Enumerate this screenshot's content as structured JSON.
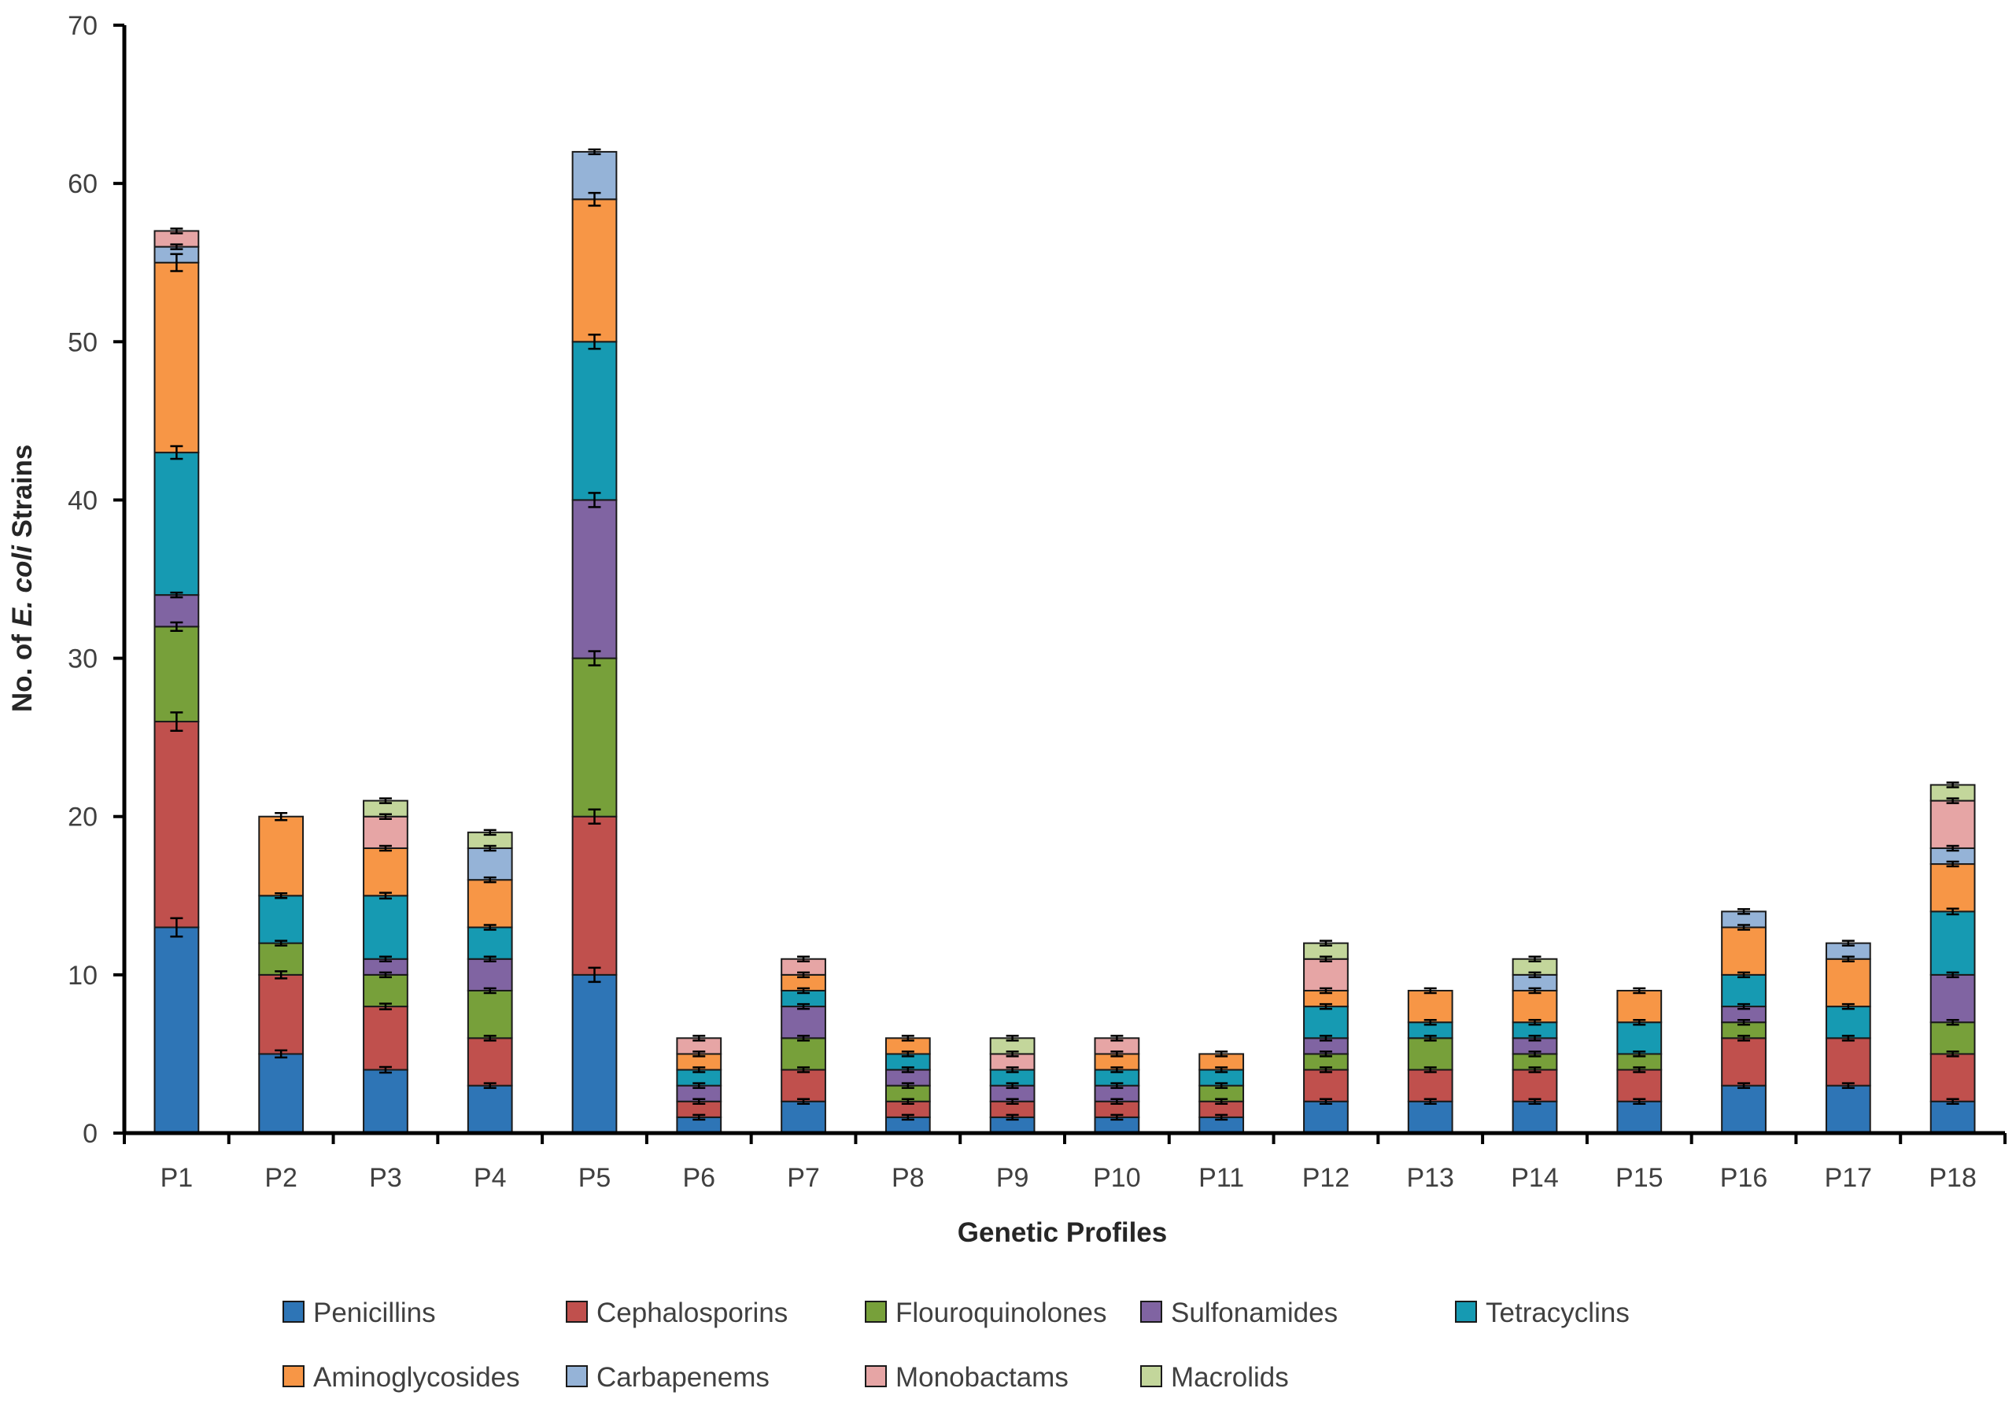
{
  "chart_data": {
    "type": "bar",
    "stacked": true,
    "title": "",
    "xlabel": "Genetic Profiles",
    "ylabel_prefix": "No. of ",
    "ylabel_italic": "E. coli",
    "ylabel_suffix": " Strains",
    "ylim": [
      0,
      70
    ],
    "yticks": [
      0,
      10,
      20,
      30,
      40,
      50,
      60,
      70
    ],
    "categories": [
      "P1",
      "P2",
      "P3",
      "P4",
      "P5",
      "P6",
      "P7",
      "P8",
      "P9",
      "P10",
      "P11",
      "P12",
      "P13",
      "P14",
      "P15",
      "P16",
      "P17",
      "P18"
    ],
    "series": [
      {
        "name": "Penicillins",
        "color": "#2E75B6",
        "values": [
          13,
          5,
          4,
          3,
          10,
          1,
          2,
          1,
          1,
          1,
          1,
          2,
          2,
          2,
          2,
          3,
          3,
          2
        ]
      },
      {
        "name": "Cephalosporins",
        "color": "#C0504D",
        "values": [
          13,
          5,
          4,
          3,
          10,
          1,
          2,
          1,
          1,
          1,
          1,
          2,
          2,
          2,
          2,
          3,
          3,
          3
        ]
      },
      {
        "name": "Flouroquinolones",
        "color": "#77A03A",
        "values": [
          6,
          2,
          2,
          3,
          10,
          0,
          2,
          1,
          0,
          0,
          1,
          1,
          2,
          1,
          1,
          1,
          0,
          2
        ]
      },
      {
        "name": "Sulfonamides",
        "color": "#8064A2",
        "values": [
          2,
          0,
          1,
          2,
          10,
          1,
          2,
          1,
          1,
          1,
          0,
          1,
          0,
          1,
          0,
          1,
          0,
          3
        ]
      },
      {
        "name": "Tetracyclins",
        "color": "#169AB2",
        "values": [
          9,
          3,
          4,
          2,
          10,
          1,
          1,
          1,
          1,
          1,
          1,
          2,
          1,
          1,
          2,
          2,
          2,
          4
        ]
      },
      {
        "name": "Aminoglycosides",
        "color": "#F79646",
        "values": [
          12,
          5,
          3,
          3,
          9,
          1,
          1,
          1,
          0,
          1,
          1,
          1,
          2,
          2,
          2,
          3,
          3,
          3
        ]
      },
      {
        "name": "Carbapenems",
        "color": "#95B3D7",
        "values": [
          1,
          0,
          0,
          2,
          3,
          0,
          0,
          0,
          0,
          0,
          0,
          0,
          0,
          1,
          0,
          1,
          1,
          1
        ]
      },
      {
        "name": "Monobactams",
        "color": "#E6A5A5",
        "values": [
          1,
          0,
          2,
          0,
          0,
          1,
          1,
          0,
          1,
          1,
          0,
          2,
          0,
          0,
          0,
          0,
          0,
          3
        ]
      },
      {
        "name": "Macrolids",
        "color": "#C3D69B",
        "values": [
          0,
          0,
          1,
          1,
          0,
          0,
          0,
          0,
          1,
          0,
          0,
          1,
          0,
          1,
          0,
          0,
          0,
          1
        ]
      }
    ]
  }
}
